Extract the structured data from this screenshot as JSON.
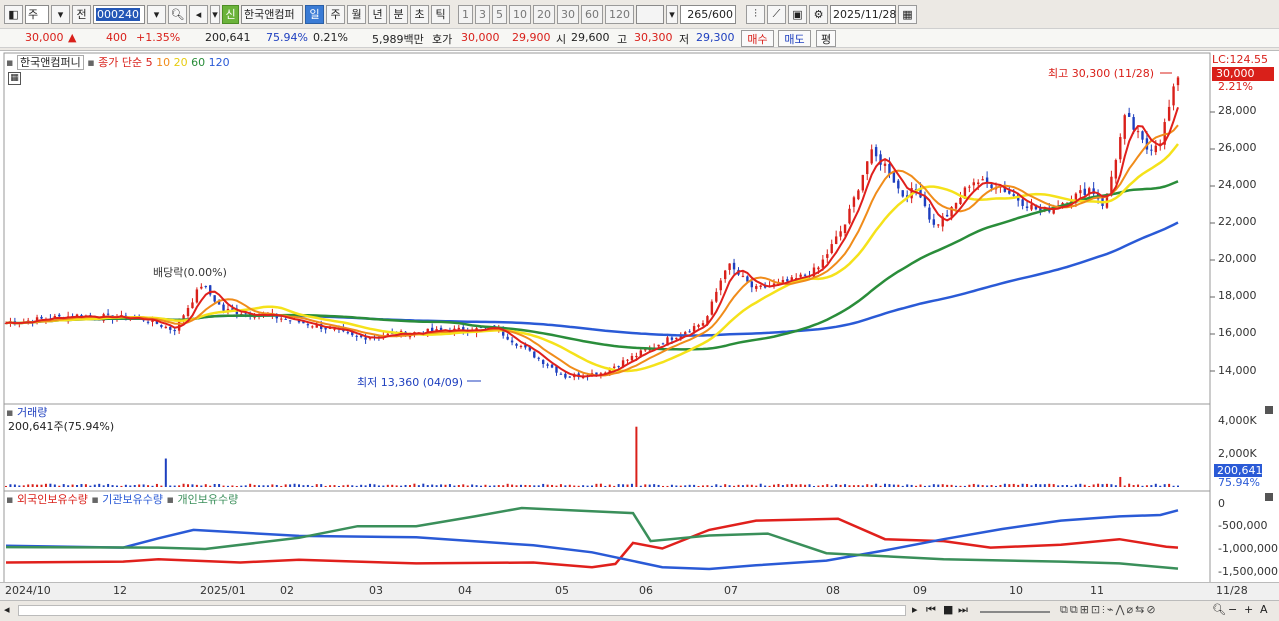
{
  "toolbar": {
    "period_select": "주",
    "type_select": "전",
    "stock_code": "000240",
    "new_badge": "신",
    "stock_name": "한국앤컴퍼",
    "periods": [
      "일",
      "주",
      "월",
      "년",
      "분",
      "초",
      "틱"
    ],
    "selected_period": "일",
    "minute_options": [
      "1",
      "3",
      "5",
      "10",
      "20",
      "30",
      "60",
      "120"
    ],
    "count_value": "265",
    "count_total": "/600",
    "date_value": "2025/11/28"
  },
  "quote": {
    "price": "30,000",
    "change": "400",
    "change_pct": "+1.35%",
    "volume": "200,641",
    "volume_ratio": "75.94%",
    "turnover_pct": "0.21%",
    "trade_amount": "5,989백만",
    "hoga_label": "호가",
    "ask": "30,000",
    "bid": "29,900",
    "open_label": "시",
    "open": "29,600",
    "high_label": "고",
    "high": "30,300",
    "low_label": "저",
    "low": "29,300",
    "buy_btn": "매수",
    "sell_btn": "매도",
    "eval_btn": "평"
  },
  "price_panel": {
    "legend_name": "한국앤컴퍼니",
    "legend_type": "종가 단순",
    "ma_labels": [
      "5",
      "10",
      "20",
      "60",
      "120"
    ],
    "lc_label": "LC:124.55",
    "current_price_tag": "30,000",
    "current_pct": "2.21%",
    "high_annotation": "최고 30,300 (11/28)",
    "low_annotation": "최저 13,360 (04/09)",
    "dividend_annotation": "배당락(0.00%)",
    "y_ticks": [
      "28,000",
      "26,000",
      "24,000",
      "22,000",
      "20,000",
      "18,000",
      "16,000",
      "14,000"
    ]
  },
  "volume_panel": {
    "title": "거래량",
    "value_label": "200,641주(75.94%)",
    "y_ticks": [
      "4,000K",
      "2,000K"
    ],
    "tag_value": "200,641",
    "tag_pct": "75.94%"
  },
  "holding_panel": {
    "series": [
      "외국인보유수량",
      "기관보유수량",
      "개인보유수량"
    ],
    "y_ticks": [
      "0",
      "-500,000",
      "-1,000,000",
      "-1,500,000"
    ]
  },
  "x_axis": {
    "ticks": [
      "2024/10",
      "12",
      "2025/01",
      "02",
      "03",
      "04",
      "05",
      "06",
      "07",
      "08",
      "09",
      "10",
      "11"
    ],
    "end_label": "11/28"
  },
  "colors": {
    "up": "#d9201a",
    "down": "#1e3fbf",
    "ma5": "#e0201c",
    "ma10": "#f08c1a",
    "ma20": "#f5e21a",
    "ma60": "#2a8d3a",
    "ma120": "#2a5ad6",
    "foreign": "#e0201c",
    "institution": "#2a5ad6",
    "individual": "#3a8f5a"
  }
}
